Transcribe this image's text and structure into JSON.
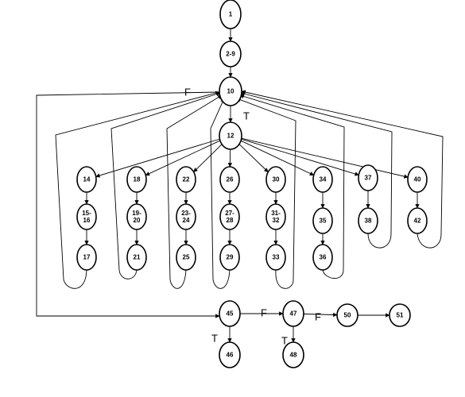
{
  "diagram": {
    "nodes": [
      {
        "id": "n1",
        "label": "1"
      },
      {
        "id": "n2_9",
        "label": "2-9"
      },
      {
        "id": "n10",
        "label": "10"
      },
      {
        "id": "n12",
        "label": "12"
      },
      {
        "id": "n14",
        "label": "14"
      },
      {
        "id": "n15_16",
        "label": "15-16"
      },
      {
        "id": "n17",
        "label": "17"
      },
      {
        "id": "n18",
        "label": "18"
      },
      {
        "id": "n19_20",
        "label": "19-20"
      },
      {
        "id": "n21",
        "label": "21"
      },
      {
        "id": "n22",
        "label": "22"
      },
      {
        "id": "n23_24",
        "label": "23-24"
      },
      {
        "id": "n25",
        "label": "25"
      },
      {
        "id": "n26",
        "label": "26"
      },
      {
        "id": "n27_28",
        "label": "27-28"
      },
      {
        "id": "n29",
        "label": "29"
      },
      {
        "id": "n30",
        "label": "30"
      },
      {
        "id": "n31_32",
        "label": "31-32"
      },
      {
        "id": "n33",
        "label": "33"
      },
      {
        "id": "n34",
        "label": "34"
      },
      {
        "id": "n35",
        "label": "35"
      },
      {
        "id": "n36",
        "label": "36"
      },
      {
        "id": "n37",
        "label": "37"
      },
      {
        "id": "n38",
        "label": "38"
      },
      {
        "id": "n40",
        "label": "40"
      },
      {
        "id": "n42",
        "label": "42"
      },
      {
        "id": "n45",
        "label": "45"
      },
      {
        "id": "n46",
        "label": "46"
      },
      {
        "id": "n47",
        "label": "47"
      },
      {
        "id": "n48",
        "label": "48"
      },
      {
        "id": "n50",
        "label": "50"
      },
      {
        "id": "n51",
        "label": "51"
      }
    ],
    "edges": [
      {
        "from": "n1",
        "to": "n2_9"
      },
      {
        "from": "n2_9",
        "to": "n10"
      },
      {
        "from": "n10",
        "to": "n12",
        "label": "T"
      },
      {
        "from": "n10",
        "to": "n45",
        "label": "F"
      },
      {
        "from": "n12",
        "to": "n14"
      },
      {
        "from": "n12",
        "to": "n18"
      },
      {
        "from": "n12",
        "to": "n22"
      },
      {
        "from": "n12",
        "to": "n26"
      },
      {
        "from": "n12",
        "to": "n30"
      },
      {
        "from": "n12",
        "to": "n34"
      },
      {
        "from": "n12",
        "to": "n37"
      },
      {
        "from": "n12",
        "to": "n40"
      },
      {
        "from": "n14",
        "to": "n15_16"
      },
      {
        "from": "n15_16",
        "to": "n17"
      },
      {
        "from": "n18",
        "to": "n19_20"
      },
      {
        "from": "n19_20",
        "to": "n21"
      },
      {
        "from": "n22",
        "to": "n23_24"
      },
      {
        "from": "n23_24",
        "to": "n25"
      },
      {
        "from": "n26",
        "to": "n27_28"
      },
      {
        "from": "n27_28",
        "to": "n29"
      },
      {
        "from": "n30",
        "to": "n31_32"
      },
      {
        "from": "n31_32",
        "to": "n33"
      },
      {
        "from": "n34",
        "to": "n35"
      },
      {
        "from": "n35",
        "to": "n36"
      },
      {
        "from": "n37",
        "to": "n38"
      },
      {
        "from": "n40",
        "to": "n42"
      },
      {
        "from": "n17",
        "to": "n10"
      },
      {
        "from": "n21",
        "to": "n10"
      },
      {
        "from": "n25",
        "to": "n10"
      },
      {
        "from": "n29",
        "to": "n10"
      },
      {
        "from": "n33",
        "to": "n10"
      },
      {
        "from": "n36",
        "to": "n10"
      },
      {
        "from": "n38",
        "to": "n10"
      },
      {
        "from": "n42",
        "to": "n10"
      },
      {
        "from": "n45",
        "to": "n46",
        "label": "T"
      },
      {
        "from": "n45",
        "to": "n47",
        "label": "F"
      },
      {
        "from": "n47",
        "to": "n48",
        "label": "T"
      },
      {
        "from": "n47",
        "to": "n50",
        "label": "F"
      },
      {
        "from": "n50",
        "to": "n51"
      }
    ]
  }
}
